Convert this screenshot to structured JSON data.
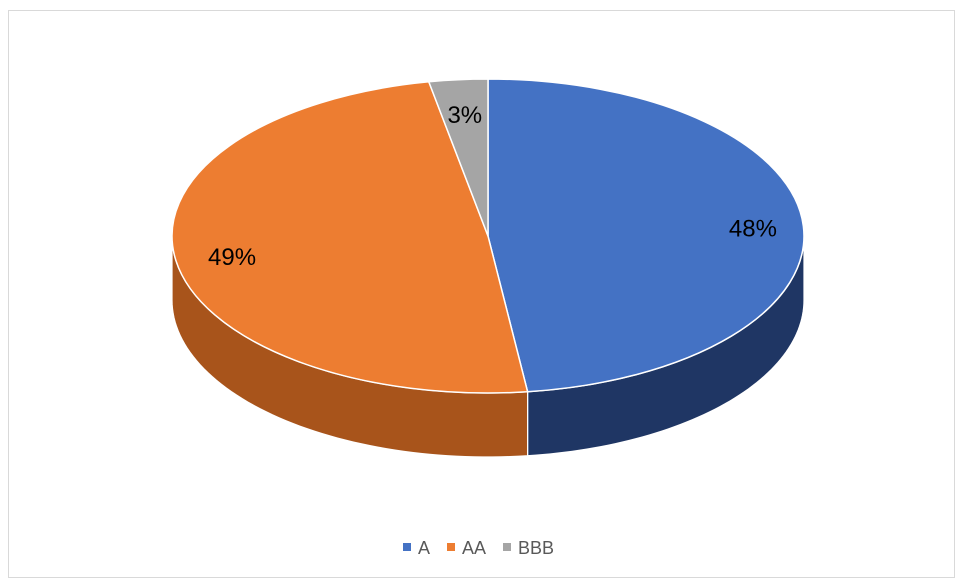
{
  "chart_data": {
    "type": "pie",
    "style": "3d",
    "title": "",
    "slices": [
      {
        "label": "A",
        "value": 48,
        "display": "48%",
        "color": "#4472C4",
        "side_color": "#1F3664"
      },
      {
        "label": "AA",
        "value": 49,
        "display": "49%",
        "color": "#ED7D31",
        "side_color": "#A8541B"
      },
      {
        "label": "BBB",
        "value": 3,
        "display": "3%",
        "color": "#A5A5A5",
        "side_color": "#6E6E6E"
      }
    ],
    "legend_position": "bottom"
  }
}
